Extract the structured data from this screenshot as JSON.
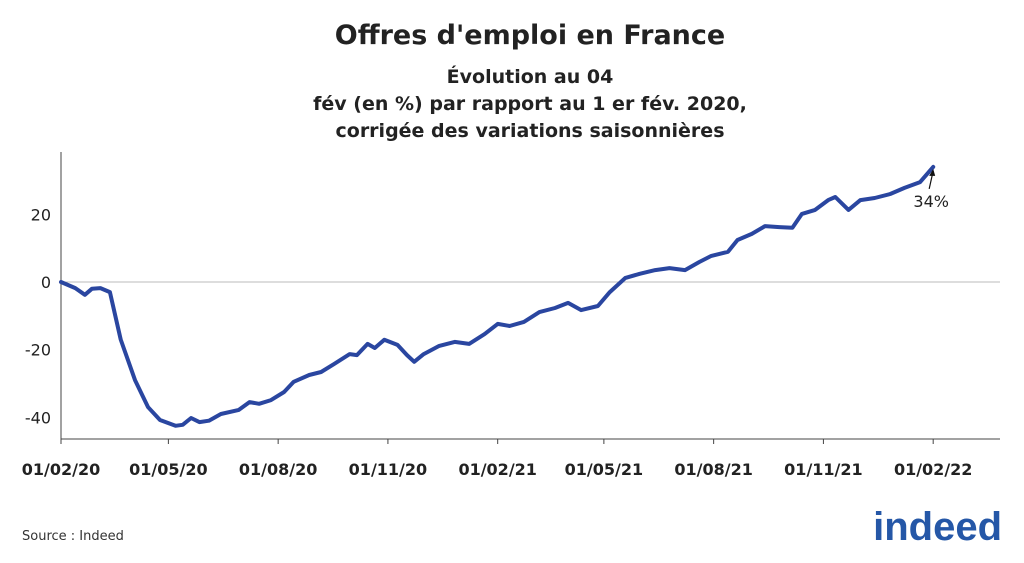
{
  "chart_data": {
    "type": "line",
    "title": "Offres d'emploi en France",
    "subtitle": [
      "Évolution au 04",
      "fév (en %) par rapport au 1 er fév. 2020,",
      "corrigée des variations saisonnières"
    ],
    "x": [
      "2020-02-01",
      "2020-02-13",
      "2020-02-21",
      "2020-02-27",
      "2020-03-05",
      "2020-03-13",
      "2020-03-22",
      "2020-04-03",
      "2020-04-14",
      "2020-04-24",
      "2020-05-07",
      "2020-05-13",
      "2020-05-20",
      "2020-05-27",
      "2020-06-04",
      "2020-06-14",
      "2020-06-29",
      "2020-07-08",
      "2020-07-16",
      "2020-07-26",
      "2020-08-06",
      "2020-08-14",
      "2020-08-27",
      "2020-09-06",
      "2020-09-17",
      "2020-09-30",
      "2020-10-06",
      "2020-10-15",
      "2020-10-21",
      "2020-10-29",
      "2020-11-09",
      "2020-11-17",
      "2020-11-23",
      "2020-12-01",
      "2020-12-14",
      "2020-12-27",
      "2021-01-08",
      "2021-01-21",
      "2021-02-01",
      "2021-02-11",
      "2021-02-23",
      "2021-03-08",
      "2021-03-21",
      "2021-04-01",
      "2021-04-12",
      "2021-04-26",
      "2021-05-06",
      "2021-05-19",
      "2021-05-31",
      "2021-06-13",
      "2021-06-25",
      "2021-07-08",
      "2021-07-20",
      "2021-07-30",
      "2021-08-13",
      "2021-08-21",
      "2021-09-02",
      "2021-09-13",
      "2021-09-25",
      "2021-10-06",
      "2021-10-14",
      "2021-10-25",
      "2021-11-05",
      "2021-11-11",
      "2021-11-22",
      "2021-12-02",
      "2021-12-14",
      "2021-12-27",
      "2022-01-08",
      "2022-01-21",
      "2022-02-01"
    ],
    "series": [
      {
        "name": "Offres d'emploi",
        "color": "#2a46a0",
        "values": [
          0,
          -1.8,
          -3.8,
          -2,
          -1.8,
          -3,
          -17,
          -29,
          -37,
          -40.8,
          -42.5,
          -42.2,
          -40.2,
          -41.4,
          -41,
          -39,
          -37.8,
          -35.5,
          -36,
          -34.9,
          -32.5,
          -29.5,
          -27.5,
          -26.6,
          -24.2,
          -21.3,
          -21.6,
          -18.3,
          -19.5,
          -17.1,
          -18.6,
          -21.6,
          -23.6,
          -21.3,
          -18.9,
          -17.7,
          -18.3,
          -15.4,
          -12.4,
          -13,
          -11.8,
          -8.9,
          -7.7,
          -6.2,
          -8.3,
          -7.1,
          -3,
          1.2,
          2.4,
          3.5,
          4.1,
          3.5,
          5.9,
          7.7,
          8.9,
          12.4,
          14.2,
          16.5,
          16.2,
          16,
          20.1,
          21.3,
          24.2,
          25.1,
          21.3,
          24.2,
          24.8,
          26,
          27.8,
          29.5,
          34
        ]
      }
    ],
    "xlim": [
      "2020-02-01",
      "2022-03-29"
    ],
    "xticks": [
      {
        "value": "2020-02-01",
        "label": "01/02/20"
      },
      {
        "value": "2020-05-01",
        "label": "01/05/20"
      },
      {
        "value": "2020-08-01",
        "label": "01/08/20"
      },
      {
        "value": "2020-11-01",
        "label": "01/11/20"
      },
      {
        "value": "2021-02-01",
        "label": "01/02/21"
      },
      {
        "value": "2021-05-01",
        "label": "01/05/21"
      },
      {
        "value": "2021-08-01",
        "label": "01/08/21"
      },
      {
        "value": "2021-11-01",
        "label": "01/11/21"
      },
      {
        "value": "2022-02-01",
        "label": "01/02/22"
      }
    ],
    "ylim": [
      -46.4,
      38.4
    ],
    "yticks": [
      -40,
      -20,
      0,
      20
    ],
    "zero_line": true,
    "annotation": {
      "text": "34%",
      "x": "2022-02-01",
      "y": 34
    },
    "source": "Source : Indeed",
    "logo": "indeed"
  }
}
